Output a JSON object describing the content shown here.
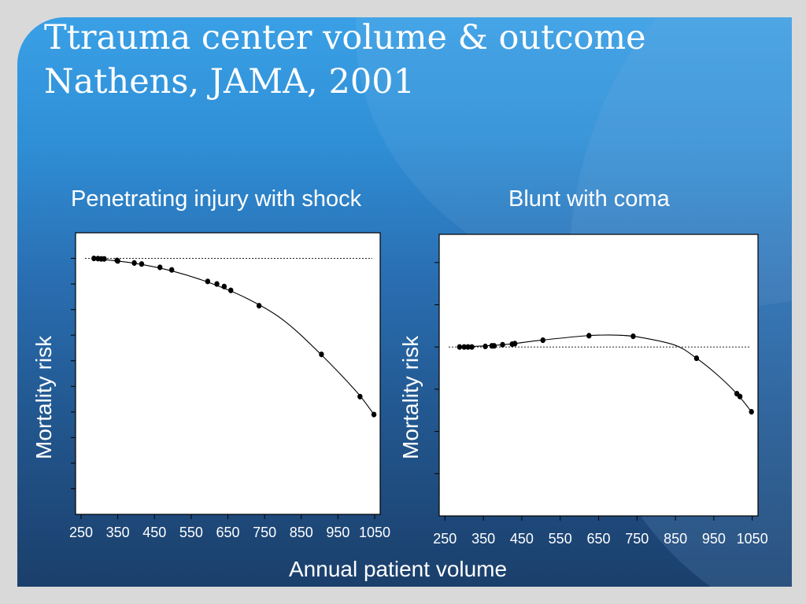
{
  "slide": {
    "title_line1": "Ttrauma center volume & outcome",
    "title_line2": "Nathens, JAMA, 2001",
    "xlabel": "Annual patient volume"
  },
  "colors": {
    "text": "#ffffff",
    "plot_bg": "#ffffff",
    "ink": "#000000"
  },
  "chart_data": [
    {
      "type": "scatter",
      "title": "Penetrating injury with shock",
      "ylabel": "Mortality risk",
      "xlim": [
        235,
        1065
      ],
      "ylim": [
        -1.0,
        0.1
      ],
      "x_ticks": [
        250,
        350,
        450,
        550,
        650,
        750,
        850,
        950,
        1050
      ],
      "x_tick_labels": [
        "250",
        "350",
        "450",
        "550",
        "650",
        "750",
        "850",
        "950",
        "1050"
      ],
      "y_ticks_unlabeled": [
        0.0,
        -0.1,
        -0.2,
        -0.3,
        -0.4,
        -0.5,
        -0.6,
        -0.7,
        -0.8,
        -0.9
      ],
      "reference_line_y": 0.0,
      "points": [
        {
          "x": 285,
          "y": 0.0
        },
        {
          "x": 296,
          "y": -0.001
        },
        {
          "x": 305,
          "y": -0.002
        },
        {
          "x": 313,
          "y": -0.002
        },
        {
          "x": 348,
          "y": -0.008
        },
        {
          "x": 350,
          "y": -0.01
        },
        {
          "x": 395,
          "y": -0.018
        },
        {
          "x": 415,
          "y": -0.022
        },
        {
          "x": 465,
          "y": -0.035
        },
        {
          "x": 497,
          "y": -0.045
        },
        {
          "x": 595,
          "y": -0.09
        },
        {
          "x": 620,
          "y": -0.1
        },
        {
          "x": 640,
          "y": -0.11
        },
        {
          "x": 658,
          "y": -0.125
        },
        {
          "x": 735,
          "y": -0.185
        },
        {
          "x": 905,
          "y": -0.375
        },
        {
          "x": 1010,
          "y": -0.54
        },
        {
          "x": 1048,
          "y": -0.61
        }
      ],
      "fit_line": [
        {
          "x": 285,
          "y": 0.0
        },
        {
          "x": 400,
          "y": -0.02
        },
        {
          "x": 500,
          "y": -0.05
        },
        {
          "x": 600,
          "y": -0.095
        },
        {
          "x": 700,
          "y": -0.155
        },
        {
          "x": 800,
          "y": -0.24
        },
        {
          "x": 900,
          "y": -0.37
        },
        {
          "x": 1000,
          "y": -0.52
        },
        {
          "x": 1048,
          "y": -0.61
        }
      ]
    },
    {
      "type": "scatter",
      "title": "Blunt with coma",
      "ylabel": "Mortality risk",
      "xlim": [
        235,
        1065
      ],
      "ylim": [
        -0.3,
        0.2
      ],
      "x_ticks": [
        250,
        350,
        450,
        550,
        650,
        750,
        850,
        950,
        1050
      ],
      "x_tick_labels": [
        "250",
        "350",
        "450",
        "550",
        "650",
        "750",
        "850",
        "950",
        "1050"
      ],
      "y_ticks_unlabeled": [
        0.15,
        0.075,
        0.0,
        -0.075,
        -0.15,
        -0.225
      ],
      "reference_line_y": 0.0,
      "points": [
        {
          "x": 288,
          "y": 0.0
        },
        {
          "x": 300,
          "y": 0.0
        },
        {
          "x": 310,
          "y": 0.0
        },
        {
          "x": 320,
          "y": 0.0
        },
        {
          "x": 355,
          "y": 0.001
        },
        {
          "x": 372,
          "y": 0.002
        },
        {
          "x": 378,
          "y": 0.002
        },
        {
          "x": 400,
          "y": 0.004
        },
        {
          "x": 425,
          "y": 0.005
        },
        {
          "x": 432,
          "y": 0.006
        },
        {
          "x": 505,
          "y": 0.012
        },
        {
          "x": 625,
          "y": 0.02
        },
        {
          "x": 740,
          "y": 0.019
        },
        {
          "x": 905,
          "y": -0.02
        },
        {
          "x": 1010,
          "y": -0.083
        },
        {
          "x": 1018,
          "y": -0.088
        },
        {
          "x": 1048,
          "y": -0.115
        }
      ],
      "fit_line": [
        {
          "x": 288,
          "y": 0.0
        },
        {
          "x": 400,
          "y": 0.004
        },
        {
          "x": 500,
          "y": 0.012
        },
        {
          "x": 620,
          "y": 0.02
        },
        {
          "x": 700,
          "y": 0.021
        },
        {
          "x": 760,
          "y": 0.017
        },
        {
          "x": 850,
          "y": 0.003
        },
        {
          "x": 905,
          "y": -0.02
        },
        {
          "x": 960,
          "y": -0.05
        },
        {
          "x": 1010,
          "y": -0.083
        },
        {
          "x": 1048,
          "y": -0.115
        }
      ]
    }
  ]
}
